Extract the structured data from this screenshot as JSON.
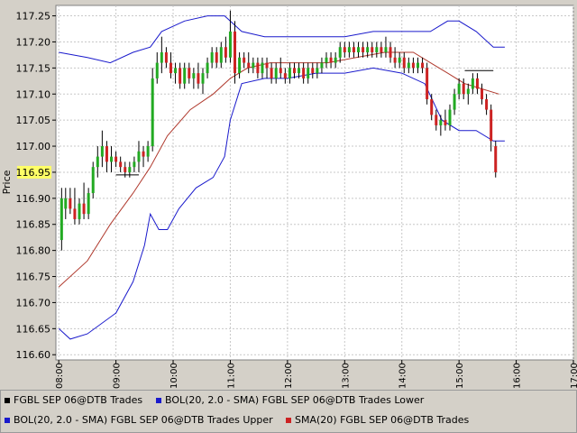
{
  "chart_data": {
    "type": "candlestick",
    "ylabel": "Price",
    "ylim": [
      116.6,
      117.27
    ],
    "y_ticks": [
      "117.25",
      "117.20",
      "117.15",
      "117.10",
      "117.05",
      "117.00",
      "116.95",
      "116.90",
      "116.85",
      "116.80",
      "116.75",
      "116.70",
      "116.65",
      "116.60"
    ],
    "y_tick_values": [
      117.25,
      117.2,
      117.15,
      117.1,
      117.05,
      117.0,
      116.95,
      116.9,
      116.85,
      116.8,
      116.75,
      116.7,
      116.65,
      116.6
    ],
    "highlighted_tick": "116.95",
    "highlight_color": "#ffff66",
    "x_ticks": [
      "08:00",
      "09:00",
      "10:00",
      "11:00",
      "12:00",
      "13:00",
      "14:00",
      "15:00",
      "16:00",
      "17:00"
    ],
    "x_tick_hours": [
      8,
      9,
      10,
      11,
      12,
      13,
      14,
      15,
      16,
      17
    ],
    "xlim_hours": [
      7.95,
      17.0
    ],
    "grid": true,
    "legend_placement": "bottom",
    "legend": [
      {
        "label": "FGBL SEP 06@DTB Trades",
        "color": "#000000"
      },
      {
        "label": "BOL(20, 2.0 - SMA) FGBL SEP 06@DTB Trades Lower",
        "color": "#1a1acc"
      },
      {
        "label": "BOL(20, 2.0 - SMA) FGBL SEP 06@DTB Trades Upper",
        "color": "#1a1acc"
      },
      {
        "label": "SMA(20) FGBL SEP 06@DTB Trades",
        "color": "#cc2222"
      }
    ],
    "colors": {
      "up": "#22aa22",
      "down": "#cc2222",
      "upper": "#1a1acc",
      "lower": "#1a1acc",
      "sma": "#b03a2e"
    },
    "candles": [
      {
        "t": 8.05,
        "o": 116.82,
        "h": 116.92,
        "l": 116.8,
        "c": 116.9
      },
      {
        "t": 8.12,
        "o": 116.88,
        "h": 116.92,
        "l": 116.86,
        "c": 116.9
      },
      {
        "t": 8.2,
        "o": 116.9,
        "h": 116.92,
        "l": 116.87,
        "c": 116.88
      },
      {
        "t": 8.28,
        "o": 116.88,
        "h": 116.92,
        "l": 116.85,
        "c": 116.86
      },
      {
        "t": 8.36,
        "o": 116.86,
        "h": 116.9,
        "l": 116.85,
        "c": 116.89
      },
      {
        "t": 8.44,
        "o": 116.89,
        "h": 116.93,
        "l": 116.86,
        "c": 116.87
      },
      {
        "t": 8.52,
        "o": 116.87,
        "h": 116.92,
        "l": 116.86,
        "c": 116.91
      },
      {
        "t": 8.6,
        "o": 116.91,
        "h": 116.97,
        "l": 116.9,
        "c": 116.96
      },
      {
        "t": 8.68,
        "o": 116.96,
        "h": 117.0,
        "l": 116.94,
        "c": 116.98
      },
      {
        "t": 8.76,
        "o": 116.98,
        "h": 117.03,
        "l": 116.96,
        "c": 117.0
      },
      {
        "t": 8.84,
        "o": 117.0,
        "h": 117.01,
        "l": 116.95,
        "c": 116.97
      },
      {
        "t": 8.92,
        "o": 116.97,
        "h": 117.0,
        "l": 116.95,
        "c": 116.98
      },
      {
        "t": 9.0,
        "o": 116.98,
        "h": 116.99,
        "l": 116.96,
        "c": 116.97
      },
      {
        "t": 9.08,
        "o": 116.97,
        "h": 116.98,
        "l": 116.95,
        "c": 116.96
      },
      {
        "t": 9.16,
        "o": 116.96,
        "h": 116.97,
        "l": 116.94,
        "c": 116.95
      },
      {
        "t": 9.24,
        "o": 116.95,
        "h": 116.97,
        "l": 116.94,
        "c": 116.96
      },
      {
        "t": 9.32,
        "o": 116.96,
        "h": 116.98,
        "l": 116.95,
        "c": 116.97
      },
      {
        "t": 9.4,
        "o": 116.97,
        "h": 117.01,
        "l": 116.95,
        "c": 116.99
      },
      {
        "t": 9.48,
        "o": 116.99,
        "h": 117.0,
        "l": 116.96,
        "c": 116.98
      },
      {
        "t": 9.56,
        "o": 116.98,
        "h": 117.01,
        "l": 116.97,
        "c": 117.0
      },
      {
        "t": 9.64,
        "o": 117.0,
        "h": 117.15,
        "l": 116.99,
        "c": 117.13
      },
      {
        "t": 9.72,
        "o": 117.13,
        "h": 117.18,
        "l": 117.12,
        "c": 117.16
      },
      {
        "t": 9.8,
        "o": 117.16,
        "h": 117.21,
        "l": 117.14,
        "c": 117.18
      },
      {
        "t": 9.88,
        "o": 117.18,
        "h": 117.19,
        "l": 117.15,
        "c": 117.16
      },
      {
        "t": 9.96,
        "o": 117.16,
        "h": 117.18,
        "l": 117.13,
        "c": 117.14
      },
      {
        "t": 10.04,
        "o": 117.14,
        "h": 117.16,
        "l": 117.12,
        "c": 117.15
      },
      {
        "t": 10.12,
        "o": 117.15,
        "h": 117.16,
        "l": 117.11,
        "c": 117.12
      },
      {
        "t": 10.2,
        "o": 117.12,
        "h": 117.16,
        "l": 117.11,
        "c": 117.15
      },
      {
        "t": 10.28,
        "o": 117.15,
        "h": 117.16,
        "l": 117.12,
        "c": 117.13
      },
      {
        "t": 10.36,
        "o": 117.13,
        "h": 117.15,
        "l": 117.11,
        "c": 117.14
      },
      {
        "t": 10.44,
        "o": 117.14,
        "h": 117.16,
        "l": 117.11,
        "c": 117.12
      },
      {
        "t": 10.52,
        "o": 117.12,
        "h": 117.15,
        "l": 117.1,
        "c": 117.14
      },
      {
        "t": 10.6,
        "o": 117.14,
        "h": 117.17,
        "l": 117.13,
        "c": 117.16
      },
      {
        "t": 10.68,
        "o": 117.16,
        "h": 117.19,
        "l": 117.15,
        "c": 117.18
      },
      {
        "t": 10.76,
        "o": 117.18,
        "h": 117.19,
        "l": 117.15,
        "c": 117.16
      },
      {
        "t": 10.84,
        "o": 117.16,
        "h": 117.2,
        "l": 117.15,
        "c": 117.19
      },
      {
        "t": 10.92,
        "o": 117.19,
        "h": 117.21,
        "l": 117.16,
        "c": 117.17
      },
      {
        "t": 11.0,
        "o": 117.17,
        "h": 117.26,
        "l": 117.16,
        "c": 117.22
      },
      {
        "t": 11.08,
        "o": 117.22,
        "h": 117.24,
        "l": 117.12,
        "c": 117.14
      },
      {
        "t": 11.16,
        "o": 117.14,
        "h": 117.18,
        "l": 117.13,
        "c": 117.17
      },
      {
        "t": 11.24,
        "o": 117.17,
        "h": 117.18,
        "l": 117.15,
        "c": 117.16
      },
      {
        "t": 11.32,
        "o": 117.16,
        "h": 117.18,
        "l": 117.14,
        "c": 117.15
      },
      {
        "t": 11.4,
        "o": 117.15,
        "h": 117.17,
        "l": 117.14,
        "c": 117.16
      },
      {
        "t": 11.48,
        "o": 117.16,
        "h": 117.17,
        "l": 117.13,
        "c": 117.14
      },
      {
        "t": 11.56,
        "o": 117.14,
        "h": 117.17,
        "l": 117.13,
        "c": 117.16
      },
      {
        "t": 11.64,
        "o": 117.16,
        "h": 117.17,
        "l": 117.13,
        "c": 117.15
      },
      {
        "t": 11.72,
        "o": 117.15,
        "h": 117.16,
        "l": 117.12,
        "c": 117.13
      },
      {
        "t": 11.8,
        "o": 117.13,
        "h": 117.16,
        "l": 117.12,
        "c": 117.15
      },
      {
        "t": 11.88,
        "o": 117.15,
        "h": 117.17,
        "l": 117.13,
        "c": 117.14
      },
      {
        "t": 11.96,
        "o": 117.14,
        "h": 117.15,
        "l": 117.12,
        "c": 117.13
      },
      {
        "t": 12.04,
        "o": 117.13,
        "h": 117.16,
        "l": 117.12,
        "c": 117.15
      },
      {
        "t": 12.12,
        "o": 117.15,
        "h": 117.16,
        "l": 117.13,
        "c": 117.14
      },
      {
        "t": 12.2,
        "o": 117.14,
        "h": 117.16,
        "l": 117.13,
        "c": 117.15
      },
      {
        "t": 12.28,
        "o": 117.15,
        "h": 117.16,
        "l": 117.12,
        "c": 117.13
      },
      {
        "t": 12.36,
        "o": 117.13,
        "h": 117.16,
        "l": 117.12,
        "c": 117.15
      },
      {
        "t": 12.44,
        "o": 117.15,
        "h": 117.16,
        "l": 117.13,
        "c": 117.14
      },
      {
        "t": 12.52,
        "o": 117.14,
        "h": 117.16,
        "l": 117.13,
        "c": 117.15
      },
      {
        "t": 12.6,
        "o": 117.15,
        "h": 117.17,
        "l": 117.14,
        "c": 117.16
      },
      {
        "t": 12.68,
        "o": 117.16,
        "h": 117.18,
        "l": 117.15,
        "c": 117.17
      },
      {
        "t": 12.76,
        "o": 117.17,
        "h": 117.18,
        "l": 117.15,
        "c": 117.16
      },
      {
        "t": 12.84,
        "o": 117.16,
        "h": 117.18,
        "l": 117.15,
        "c": 117.17
      },
      {
        "t": 12.92,
        "o": 117.17,
        "h": 117.2,
        "l": 117.16,
        "c": 117.19
      },
      {
        "t": 13.0,
        "o": 117.19,
        "h": 117.2,
        "l": 117.17,
        "c": 117.18
      },
      {
        "t": 13.08,
        "o": 117.18,
        "h": 117.2,
        "l": 117.17,
        "c": 117.19
      },
      {
        "t": 13.16,
        "o": 117.19,
        "h": 117.2,
        "l": 117.17,
        "c": 117.18
      },
      {
        "t": 13.24,
        "o": 117.18,
        "h": 117.2,
        "l": 117.17,
        "c": 117.19
      },
      {
        "t": 13.32,
        "o": 117.19,
        "h": 117.2,
        "l": 117.17,
        "c": 117.18
      },
      {
        "t": 13.4,
        "o": 117.18,
        "h": 117.2,
        "l": 117.17,
        "c": 117.19
      },
      {
        "t": 13.48,
        "o": 117.19,
        "h": 117.2,
        "l": 117.17,
        "c": 117.18
      },
      {
        "t": 13.56,
        "o": 117.18,
        "h": 117.2,
        "l": 117.17,
        "c": 117.19
      },
      {
        "t": 13.64,
        "o": 117.19,
        "h": 117.2,
        "l": 117.17,
        "c": 117.18
      },
      {
        "t": 13.72,
        "o": 117.18,
        "h": 117.21,
        "l": 117.17,
        "c": 117.19
      },
      {
        "t": 13.8,
        "o": 117.19,
        "h": 117.2,
        "l": 117.16,
        "c": 117.17
      },
      {
        "t": 13.88,
        "o": 117.17,
        "h": 117.19,
        "l": 117.15,
        "c": 117.16
      },
      {
        "t": 13.96,
        "o": 117.16,
        "h": 117.18,
        "l": 117.15,
        "c": 117.17
      },
      {
        "t": 14.04,
        "o": 117.17,
        "h": 117.18,
        "l": 117.14,
        "c": 117.15
      },
      {
        "t": 14.12,
        "o": 117.15,
        "h": 117.17,
        "l": 117.14,
        "c": 117.16
      },
      {
        "t": 14.2,
        "o": 117.16,
        "h": 117.17,
        "l": 117.14,
        "c": 117.15
      },
      {
        "t": 14.28,
        "o": 117.15,
        "h": 117.17,
        "l": 117.14,
        "c": 117.16
      },
      {
        "t": 14.36,
        "o": 117.16,
        "h": 117.17,
        "l": 117.14,
        "c": 117.15
      },
      {
        "t": 14.44,
        "o": 117.15,
        "h": 117.16,
        "l": 117.08,
        "c": 117.09
      },
      {
        "t": 14.52,
        "o": 117.09,
        "h": 117.1,
        "l": 117.05,
        "c": 117.06
      },
      {
        "t": 14.6,
        "o": 117.06,
        "h": 117.07,
        "l": 117.03,
        "c": 117.04
      },
      {
        "t": 14.68,
        "o": 117.04,
        "h": 117.06,
        "l": 117.02,
        "c": 117.05
      },
      {
        "t": 14.76,
        "o": 117.05,
        "h": 117.07,
        "l": 117.03,
        "c": 117.04
      },
      {
        "t": 14.84,
        "o": 117.04,
        "h": 117.08,
        "l": 117.03,
        "c": 117.07
      },
      {
        "t": 14.92,
        "o": 117.07,
        "h": 117.11,
        "l": 117.06,
        "c": 117.1
      },
      {
        "t": 15.0,
        "o": 117.1,
        "h": 117.13,
        "l": 117.09,
        "c": 117.12
      },
      {
        "t": 15.08,
        "o": 117.12,
        "h": 117.13,
        "l": 117.09,
        "c": 117.1
      },
      {
        "t": 15.16,
        "o": 117.1,
        "h": 117.12,
        "l": 117.08,
        "c": 117.11
      },
      {
        "t": 15.24,
        "o": 117.11,
        "h": 117.14,
        "l": 117.1,
        "c": 117.13
      },
      {
        "t": 15.32,
        "o": 117.13,
        "h": 117.14,
        "l": 117.1,
        "c": 117.11
      },
      {
        "t": 15.4,
        "o": 117.11,
        "h": 117.12,
        "l": 117.08,
        "c": 117.09
      },
      {
        "t": 15.48,
        "o": 117.09,
        "h": 117.1,
        "l": 117.06,
        "c": 117.07
      },
      {
        "t": 15.56,
        "o": 117.07,
        "h": 117.08,
        "l": 116.99,
        "c": 117.01
      },
      {
        "t": 15.64,
        "o": 117.0,
        "h": 117.01,
        "l": 116.94,
        "c": 116.95
      }
    ],
    "upper_band": [
      {
        "t": 8.0,
        "v": 117.18
      },
      {
        "t": 8.5,
        "v": 117.17
      },
      {
        "t": 8.9,
        "v": 117.16
      },
      {
        "t": 9.3,
        "v": 117.18
      },
      {
        "t": 9.6,
        "v": 117.19
      },
      {
        "t": 9.8,
        "v": 117.22
      },
      {
        "t": 10.2,
        "v": 117.24
      },
      {
        "t": 10.6,
        "v": 117.25
      },
      {
        "t": 10.9,
        "v": 117.25
      },
      {
        "t": 11.2,
        "v": 117.22
      },
      {
        "t": 11.6,
        "v": 117.21
      },
      {
        "t": 12.0,
        "v": 117.21
      },
      {
        "t": 12.5,
        "v": 117.21
      },
      {
        "t": 13.0,
        "v": 117.21
      },
      {
        "t": 13.5,
        "v": 117.22
      },
      {
        "t": 14.0,
        "v": 117.22
      },
      {
        "t": 14.5,
        "v": 117.22
      },
      {
        "t": 14.8,
        "v": 117.24
      },
      {
        "t": 15.0,
        "v": 117.24
      },
      {
        "t": 15.3,
        "v": 117.22
      },
      {
        "t": 15.6,
        "v": 117.19
      },
      {
        "t": 15.8,
        "v": 117.19
      }
    ],
    "lower_band": [
      {
        "t": 8.0,
        "v": 116.65
      },
      {
        "t": 8.2,
        "v": 116.63
      },
      {
        "t": 8.5,
        "v": 116.64
      },
      {
        "t": 9.0,
        "v": 116.68
      },
      {
        "t": 9.3,
        "v": 116.74
      },
      {
        "t": 9.5,
        "v": 116.81
      },
      {
        "t": 9.6,
        "v": 116.87
      },
      {
        "t": 9.75,
        "v": 116.84
      },
      {
        "t": 9.9,
        "v": 116.84
      },
      {
        "t": 10.1,
        "v": 116.88
      },
      {
        "t": 10.4,
        "v": 116.92
      },
      {
        "t": 10.7,
        "v": 116.94
      },
      {
        "t": 10.9,
        "v": 116.98
      },
      {
        "t": 11.0,
        "v": 117.05
      },
      {
        "t": 11.2,
        "v": 117.12
      },
      {
        "t": 11.6,
        "v": 117.13
      },
      {
        "t": 12.0,
        "v": 117.13
      },
      {
        "t": 12.5,
        "v": 117.14
      },
      {
        "t": 13.0,
        "v": 117.14
      },
      {
        "t": 13.5,
        "v": 117.15
      },
      {
        "t": 14.0,
        "v": 117.14
      },
      {
        "t": 14.4,
        "v": 117.12
      },
      {
        "t": 14.7,
        "v": 117.05
      },
      {
        "t": 15.0,
        "v": 117.03
      },
      {
        "t": 15.3,
        "v": 117.03
      },
      {
        "t": 15.6,
        "v": 117.01
      },
      {
        "t": 15.8,
        "v": 117.01
      }
    ],
    "sma": [
      {
        "t": 8.0,
        "v": 116.73
      },
      {
        "t": 8.5,
        "v": 116.78
      },
      {
        "t": 8.9,
        "v": 116.85
      },
      {
        "t": 9.3,
        "v": 116.91
      },
      {
        "t": 9.6,
        "v": 116.96
      },
      {
        "t": 9.9,
        "v": 117.02
      },
      {
        "t": 10.3,
        "v": 117.07
      },
      {
        "t": 10.7,
        "v": 117.1
      },
      {
        "t": 11.0,
        "v": 117.13
      },
      {
        "t": 11.3,
        "v": 117.15
      },
      {
        "t": 11.7,
        "v": 117.16
      },
      {
        "t": 12.2,
        "v": 117.16
      },
      {
        "t": 12.7,
        "v": 117.16
      },
      {
        "t": 13.2,
        "v": 117.17
      },
      {
        "t": 13.7,
        "v": 117.18
      },
      {
        "t": 14.2,
        "v": 117.18
      },
      {
        "t": 14.5,
        "v": 117.16
      },
      {
        "t": 14.8,
        "v": 117.14
      },
      {
        "t": 15.1,
        "v": 117.12
      },
      {
        "t": 15.4,
        "v": 117.11
      },
      {
        "t": 15.7,
        "v": 117.1
      }
    ],
    "level_marks": [
      {
        "t0": 9.0,
        "t1": 9.4,
        "v": 116.945
      },
      {
        "t0": 15.1,
        "t1": 15.6,
        "v": 117.145
      }
    ]
  }
}
